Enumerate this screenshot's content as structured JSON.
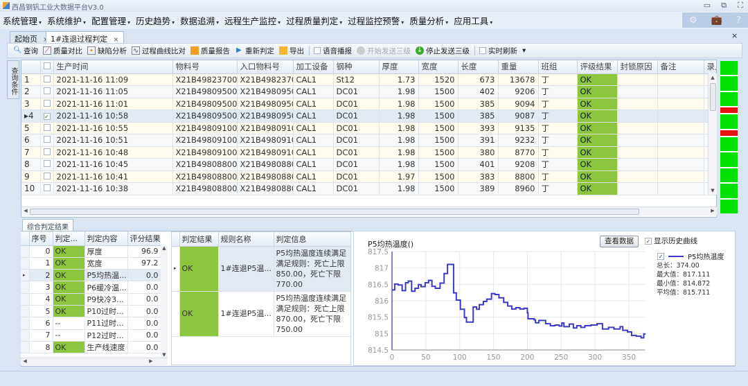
{
  "window": {
    "title": "西昌钢钒工业大数据平台V3.0",
    "minimize": "▭",
    "restore": "⧉",
    "maximize": "⛶"
  },
  "menu": [
    "系统管理",
    "系统维护",
    "配置管理",
    "历史趋势",
    "数据追溯",
    "远程生产监控",
    "过程质量判定",
    "过程监控预警",
    "质量分析",
    "应用工具"
  ],
  "top_icons": [
    "⚙",
    "💼",
    "?"
  ],
  "tabs": [
    {
      "label": "起始页",
      "close": "×"
    },
    {
      "label": "1#连退过程判定",
      "close": "×"
    }
  ],
  "close_all": "×",
  "toolbar": {
    "query": "查询",
    "compare": "质量对比",
    "defect": "缺陷分析",
    "curve_compare": "过程曲线比对",
    "report": "质量报告",
    "rejudge": "重新判定",
    "export": "导出",
    "voice": "语音播报",
    "start_send": "开始发送三级",
    "stop_send": "停止发送三级",
    "realtime": "实时刷新",
    "more": "▾"
  },
  "side_tab": "查询条件",
  "grid": {
    "columns": [
      "生产时间",
      "物料号",
      "入口物料号",
      "加工设备",
      "钢种",
      "厚度",
      "宽度",
      "长度",
      "重量",
      "班组",
      "评级结果",
      "封锁原因",
      "备注",
      "录入"
    ],
    "rows": [
      [
        "1",
        "2021-11-16 11:09",
        "X21B49823700...",
        "X21B4982370...",
        "CAL1",
        "St12",
        "1.73",
        "1520",
        "673",
        "13678",
        "丁",
        "OK",
        "",
        ""
      ],
      [
        "2",
        "2021-11-16 11:05",
        "X21B49809500...",
        "X21B4980950...",
        "CAL1",
        "DC01",
        "1.98",
        "1500",
        "402",
        "9206",
        "丁",
        "OK",
        "",
        ""
      ],
      [
        "3",
        "2021-11-16 11:01",
        "X21B49809500...",
        "X21B4980950...",
        "CAL1",
        "DC01",
        "1.98",
        "1500",
        "385",
        "9094",
        "丁",
        "OK",
        "",
        ""
      ],
      [
        "4",
        "2021-11-16 10:58",
        "X21B49809500...",
        "X21B4980950...",
        "CAL1",
        "DC01",
        "1.98",
        "1500",
        "385",
        "9087",
        "丁",
        "OK",
        "",
        ""
      ],
      [
        "5",
        "2021-11-16 10:55",
        "X21B49809100...",
        "X21B4980910...",
        "CAL1",
        "DC01",
        "1.98",
        "1500",
        "393",
        "9135",
        "丁",
        "OK",
        "",
        ""
      ],
      [
        "6",
        "2021-11-16 10:51",
        "X21B49809100...",
        "X21B4980910...",
        "CAL1",
        "DC01",
        "1.98",
        "1500",
        "391",
        "9232",
        "丁",
        "OK",
        "",
        ""
      ],
      [
        "7",
        "2021-11-16 10:48",
        "X21B49809100...",
        "X21B4980910...",
        "CAL1",
        "DC01",
        "1.98",
        "1500",
        "380",
        "8770",
        "丁",
        "OK",
        "",
        ""
      ],
      [
        "8",
        "2021-11-16 10:45",
        "X21B49808800...",
        "X21B4980880...",
        "CAL1",
        "DC01",
        "1.98",
        "1500",
        "401",
        "9208",
        "丁",
        "OK",
        "",
        ""
      ],
      [
        "9",
        "2021-11-16 10:41",
        "X21B49808800...",
        "X21B4980880...",
        "CAL1",
        "DC01",
        "1.97",
        "1500",
        "383",
        "8800",
        "丁",
        "OK",
        "",
        ""
      ],
      [
        "10",
        "2021-11-16 10:38",
        "X21B49808800...",
        "X21B4980880...",
        "CAL1",
        "DC01",
        "1.98",
        "1500",
        "389",
        "8960",
        "丁",
        "OK",
        "",
        ""
      ]
    ],
    "selected_row": 4,
    "checked_row": 4,
    "ok_color": "#8cc63f"
  },
  "status_strip": [
    "ok",
    "ok",
    "ok",
    "ng",
    "ok",
    "ng",
    "ok",
    "ok",
    "ok",
    "ok",
    "ok"
  ],
  "status_colors": {
    "ok": "#00e000",
    "ng": "#e81010"
  },
  "bottom_tab": "综合判定结果",
  "judge_grid": {
    "columns": [
      "序号",
      "判定...",
      "判定内容",
      "评分结果"
    ],
    "rows": [
      [
        "0",
        "OK",
        "厚度",
        "96.9"
      ],
      [
        "1",
        "OK",
        "宽度",
        "97.2"
      ],
      [
        "2",
        "OK",
        "P5均热温...",
        "0.0"
      ],
      [
        "3",
        "OK",
        "P6缓冷温...",
        "0.0"
      ],
      [
        "4",
        "OK",
        "P9快冷3...",
        "0.0"
      ],
      [
        "5",
        "OK",
        "P10过时...",
        "0.0"
      ],
      [
        "6",
        "--",
        "P11过时...",
        "0.0"
      ],
      [
        "7",
        "--",
        "P12过时...",
        "0.0"
      ],
      [
        "8",
        "OK",
        "生产线速度",
        "0.0"
      ]
    ],
    "selected_row": 2
  },
  "rule_grid": {
    "columns": [
      "判定结果",
      "规则名称",
      "判定信息"
    ],
    "rows": [
      [
        "OK",
        "1#连退P5温...",
        "P5均热温度连续满足满足规则：死亡上限850.00，死亡下限770.00"
      ],
      [
        "OK",
        "1#连退P5温...",
        "P5均热温度连续满足满足规则：死亡上限870.00，死亡下限750.00"
      ]
    ]
  },
  "chart_panel": {
    "view_data": "查看数据",
    "show_history": "显示历史曲线",
    "stats": [
      "总长：374.00",
      "最大值：817.111",
      "最小值：814.872",
      "平均值：815.711"
    ]
  },
  "chart_data": {
    "type": "line",
    "title": "P5均热温度()",
    "xlim": [
      0,
      374
    ],
    "ylim": [
      814.5,
      817.5
    ],
    "xticks": [
      0,
      50,
      100,
      150,
      200,
      250,
      300,
      350
    ],
    "yticks": [
      814.5,
      815,
      815.5,
      816,
      816.5,
      817,
      817.5
    ],
    "grid": true,
    "legend": "right",
    "step": true,
    "series": [
      {
        "name": "P5均热温度",
        "color": "#3a3ac8",
        "x": [
          0,
          4,
          9,
          15,
          20,
          24,
          29,
          34,
          39,
          43,
          49,
          54,
          59,
          64,
          71,
          77,
          82,
          89,
          91,
          95,
          101,
          107,
          110,
          118,
          120,
          125,
          129,
          135,
          140,
          147,
          152,
          158,
          165,
          171,
          177,
          183,
          189,
          195,
          200,
          201,
          210,
          212,
          217,
          227,
          234,
          241,
          247,
          251,
          254,
          262,
          268,
          273,
          279,
          285,
          294,
          303,
          311,
          320,
          328,
          337,
          341,
          348,
          354,
          361,
          368,
          372,
          374
        ],
        "y": [
          816.33,
          816.51,
          816.48,
          816.31,
          816.55,
          816.6,
          816.29,
          816.38,
          816.49,
          816.43,
          816.55,
          816.62,
          816.44,
          816.38,
          816.54,
          816.83,
          817.11,
          817.11,
          816.24,
          816.02,
          815.74,
          815.49,
          815.35,
          815.35,
          815.81,
          815.74,
          815.88,
          815.98,
          816.05,
          816.22,
          816.19,
          816.09,
          815.95,
          815.84,
          815.75,
          815.79,
          815.75,
          815.77,
          815.63,
          815.45,
          815.42,
          815.33,
          815.4,
          815.3,
          815.24,
          815.26,
          815.23,
          815.32,
          815.21,
          815.29,
          815.17,
          815.24,
          815.19,
          815.24,
          815.26,
          815.3,
          815.14,
          815.19,
          815.14,
          815.21,
          815.1,
          815.05,
          814.94,
          814.92,
          814.87,
          814.99,
          815.0
        ]
      }
    ]
  }
}
